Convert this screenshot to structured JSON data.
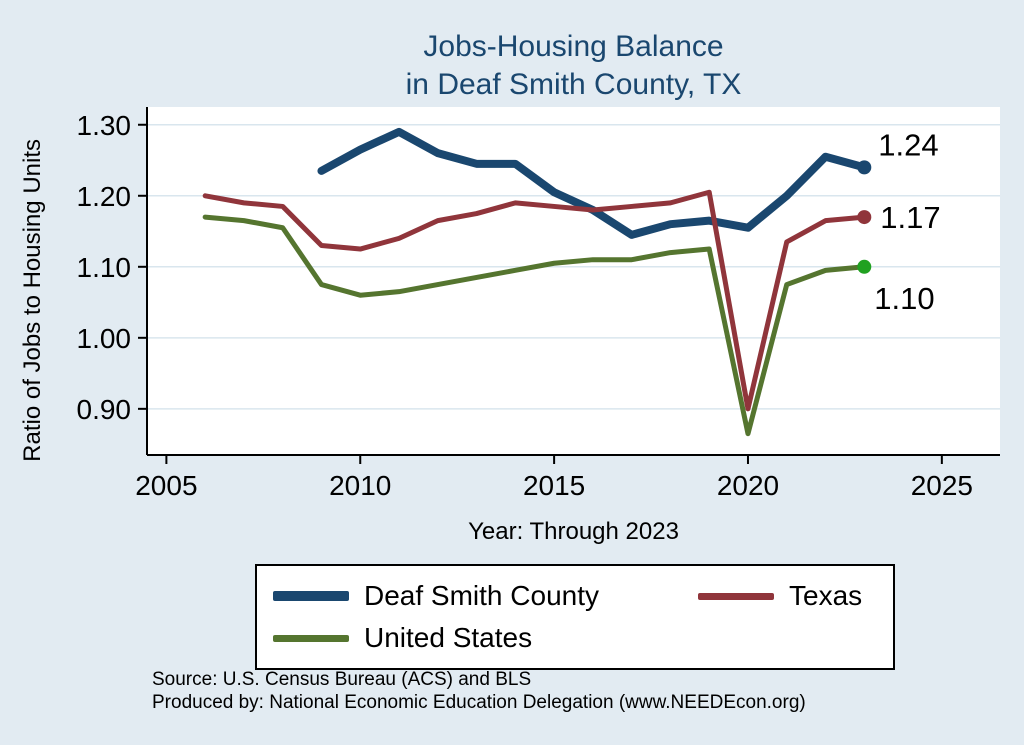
{
  "title": {
    "line1": "Jobs-Housing Balance",
    "line2": "in Deaf Smith County, TX"
  },
  "ylabel": "Ratio of Jobs to Housing Units",
  "xlabel": "Year: Through 2023",
  "legend": {
    "items": [
      {
        "label": "Deaf Smith County",
        "color": "#1a476f"
      },
      {
        "label": "Texas",
        "color": "#90353b"
      },
      {
        "label": "United States",
        "color": "#55752f"
      }
    ]
  },
  "footer": {
    "line1": "Source: U.S. Census Bureau (ACS) and BLS",
    "line2": "Produced by: National Economic Education Delegation (www.NEEDEcon.org)"
  },
  "chart_data": {
    "type": "line",
    "title": "Jobs-Housing Balance in Deaf Smith County, TX",
    "xlabel": "Year: Through 2023",
    "ylabel": "Ratio of Jobs to Housing Units",
    "x": [
      2006,
      2007,
      2008,
      2009,
      2010,
      2011,
      2012,
      2013,
      2014,
      2015,
      2016,
      2017,
      2018,
      2019,
      2020,
      2021,
      2022,
      2023
    ],
    "series": [
      {
        "name": "Deaf Smith County",
        "color": "#1a476f",
        "width": 8,
        "end_label": "1.24",
        "label_dx": 14,
        "label_dy": -12,
        "values": [
          null,
          null,
          null,
          1.235,
          1.265,
          1.29,
          1.26,
          1.245,
          1.245,
          1.205,
          1.18,
          1.145,
          1.16,
          1.165,
          1.155,
          1.2,
          1.255,
          1.24
        ]
      },
      {
        "name": "Texas",
        "color": "#90353b",
        "width": 5,
        "end_label": "1.17",
        "label_dx": 16,
        "label_dy": 11,
        "values": [
          1.2,
          1.19,
          1.185,
          1.13,
          1.125,
          1.14,
          1.165,
          1.175,
          1.19,
          1.185,
          1.18,
          1.185,
          1.19,
          1.205,
          0.9,
          1.135,
          1.165,
          1.17
        ]
      },
      {
        "name": "United States",
        "color": "#55752f",
        "width": 5,
        "marker_color": "#21a121",
        "end_label": "1.10",
        "label_dx": 10,
        "label_dy": 42,
        "values": [
          1.17,
          1.165,
          1.155,
          1.075,
          1.06,
          1.065,
          1.075,
          1.085,
          1.095,
          1.105,
          1.11,
          1.11,
          1.12,
          1.125,
          0.865,
          1.075,
          1.095,
          1.1
        ]
      }
    ],
    "xticks": [
      2005,
      2010,
      2015,
      2020,
      2025
    ],
    "yticks": [
      0.9,
      1.0,
      1.1,
      1.2,
      1.3
    ],
    "xlim": [
      2004.5,
      2026.5
    ],
    "ylim": [
      0.835,
      1.325
    ],
    "grid": true,
    "grid_color": "#d9e6ee",
    "legend_position": "bottom"
  }
}
